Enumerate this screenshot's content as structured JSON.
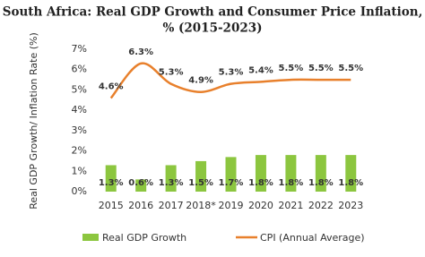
{
  "chart_data": {
    "type": "bar-line",
    "title": [
      "South Africa: Real GDP Growth and Consumer Price Inflation,",
      "% (2015-2023)"
    ],
    "ylabel": "Real GDP Growth/ Inflation Rate  (%)",
    "categories": [
      "2015",
      "2016",
      "2017",
      "2018*",
      "2019",
      "2020",
      "2021",
      "2022",
      "2023"
    ],
    "ylim": [
      0,
      7
    ],
    "yticks": [
      {
        "value": 0,
        "label": "0%"
      },
      {
        "value": 1,
        "label": "1%"
      },
      {
        "value": 2,
        "label": "2%"
      },
      {
        "value": 3,
        "label": "3%"
      },
      {
        "value": 4,
        "label": "4%"
      },
      {
        "value": 5,
        "label": "5%"
      },
      {
        "value": 6,
        "label": "6%"
      },
      {
        "value": 7,
        "label": "7%"
      }
    ],
    "series": [
      {
        "name": "Real GDP Growth",
        "type": "bar",
        "color": "#8cc63f",
        "values": [
          1.3,
          0.6,
          1.3,
          1.5,
          1.7,
          1.8,
          1.8,
          1.8,
          1.8
        ],
        "value_labels": [
          "1.3%",
          "0.6%",
          "1.3%",
          "1.5%",
          "1.7%",
          "1.8%",
          "1.8%",
          "1.8%",
          "1.8%"
        ]
      },
      {
        "name": "CPI (Annual Average)",
        "type": "line",
        "color": "#e8802c",
        "values": [
          4.6,
          6.3,
          5.3,
          4.9,
          5.3,
          5.4,
          5.5,
          5.5,
          5.5
        ],
        "value_labels": [
          "4.6%",
          "6.3%",
          "5.3%",
          "4.9%",
          "5.3%",
          "5.4%",
          "5.5%",
          "5.5%",
          "5.5%"
        ]
      }
    ]
  }
}
